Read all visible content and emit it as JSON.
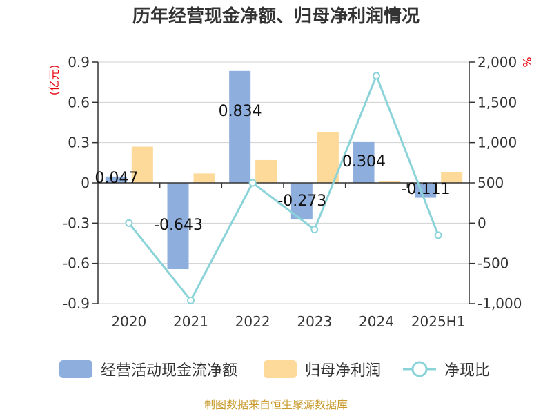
{
  "chart_data": {
    "type": "bar",
    "title": "历年经营现金净额、归母净利润情况",
    "categories": [
      "2020",
      "2021",
      "2022",
      "2023",
      "2024",
      "2025H1"
    ],
    "left_axis": {
      "unit": "(亿元)",
      "ylim": [
        -0.9,
        0.9
      ],
      "ticks": [
        "0.9",
        "0.6",
        "0.3",
        "0",
        "-0.3",
        "-0.6",
        "-0.9"
      ],
      "tick_values": [
        0.9,
        0.6,
        0.3,
        0,
        -0.3,
        -0.6,
        -0.9
      ]
    },
    "right_axis": {
      "unit": "%",
      "ylim": [
        -1000,
        2000
      ],
      "ticks": [
        "2,000",
        "1,500",
        "1,000",
        "500",
        "0",
        "-500",
        "-1,000"
      ],
      "tick_values": [
        2000,
        1500,
        1000,
        500,
        0,
        -500,
        -1000
      ]
    },
    "series": [
      {
        "name": "经营活动现金流净额",
        "type": "bar",
        "axis": "left",
        "color": "#8eaedd",
        "values": [
          0.047,
          -0.643,
          0.834,
          -0.273,
          0.304,
          -0.111
        ],
        "labels": [
          "0.047",
          "-0.643",
          "0.834",
          "-0.273",
          "0.304",
          "-0.111"
        ]
      },
      {
        "name": "归母净利润",
        "type": "bar",
        "axis": "left",
        "color": "#fdd99a",
        "values": [
          0.27,
          0.07,
          0.17,
          0.38,
          0.015,
          0.08
        ]
      },
      {
        "name": "净现比",
        "type": "line",
        "axis": "right",
        "color": "#8ad3d8",
        "values": [
          0,
          -960,
          500,
          -80,
          1830,
          -150
        ]
      }
    ],
    "grid": true,
    "legend_position": "bottom"
  },
  "source": "制图数据来自恒生聚源数据库"
}
